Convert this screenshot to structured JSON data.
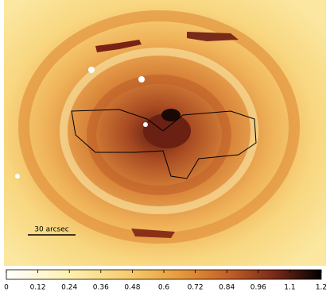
{
  "chart_data": {
    "type": "colormap",
    "scale_label": "30 arcsec",
    "xlim": [
      0,
      1.2
    ],
    "xticks": [
      0,
      0.12,
      0.24,
      0.36,
      0.48,
      0.6,
      0.72,
      0.84,
      0.96,
      {
        "value": 1.08,
        "label": "1.1"
      },
      1.2
    ]
  }
}
